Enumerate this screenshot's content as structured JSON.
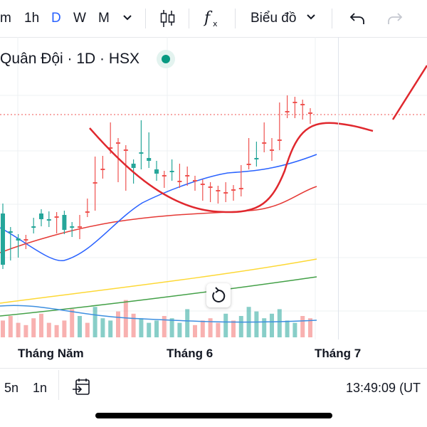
{
  "toolbar": {
    "interval_cut": "m",
    "interval_1h": "1h",
    "interval_d": "D",
    "interval_w": "W",
    "interval_m": "M",
    "chart_type_menu": "Biểu đồ",
    "icons": [
      "chevron-down-icon",
      "candles-icon",
      "indicators-fx-icon",
      "undo-icon",
      "redo-icon"
    ]
  },
  "symbol": {
    "title": "Quân Đội · 1D · HSX",
    "status_color": "#089981"
  },
  "xaxis": {
    "labels": [
      "Tháng Năm",
      "Tháng 6",
      "Tháng 7"
    ]
  },
  "bottom": {
    "range_5n": "5n",
    "range_1n": "1n",
    "time": "13:49:09 (UT"
  },
  "colors": {
    "up": "#26a69a",
    "down": "#ef5350",
    "ma_blue": "#2962ff",
    "ma_red": "#e53935",
    "ma_yellow": "#fdd835",
    "ma_green": "#43a047",
    "annotation": "#e0282e"
  },
  "chart_data": {
    "type": "candlestick",
    "series": [
      {
        "name": "price",
        "ohlc": [
          [
            372,
            300,
            320,
            292
          ],
          [
            326,
            325,
            360,
            350
          ],
          [
            338,
            335,
            356,
            355
          ],
          [
            336,
            336,
            344,
            340
          ],
          [
            320,
            318,
            322,
            312
          ],
          [
            308,
            300,
            312,
            304
          ],
          [
            309,
            308,
            313,
            303
          ],
          [
            304,
            304,
            320,
            322
          ],
          [
            323,
            302,
            306,
            319
          ],
          [
            319,
            318,
            327,
            324
          ],
          [
            318,
            320,
            308,
            330
          ],
          [
            297,
            297,
            299,
            285
          ],
          [
            256,
            256,
            226,
            290
          ],
          [
            237,
            237,
            225,
            245
          ],
          [
            207,
            207,
            178,
            210
          ],
          [
            200,
            200,
            240,
            250
          ],
          [
            210,
            210,
            260,
            262
          ],
          [
            236,
            230,
            248,
            252
          ],
          [
            216,
            214,
            175,
            232
          ],
          [
            226,
            222,
            192,
            230
          ],
          [
            244,
            238,
            232,
            248
          ],
          [
            246,
            246,
            254,
            258
          ],
          [
            242,
            240,
            230,
            248
          ],
          [
            254,
            254,
            236,
            258
          ],
          [
            246,
            246,
            240,
            255
          ],
          [
            253,
            253,
            256,
            262
          ],
          [
            258,
            258,
            270,
            276
          ],
          [
            262,
            262,
            275,
            278
          ],
          [
            267,
            267,
            272,
            280
          ],
          [
            270,
            270,
            262,
            278
          ],
          [
            266,
            266,
            272,
            276
          ],
          [
            264,
            264,
            238,
            270
          ],
          [
            230,
            230,
            200,
            232
          ],
          [
            224,
            222,
            205,
            228
          ],
          [
            200,
            200,
            178,
            208
          ],
          [
            210,
            210,
            200,
            220
          ],
          [
            196,
            196,
            150,
            205
          ],
          [
            156,
            156,
            140,
            160
          ],
          [
            143,
            143,
            142,
            160
          ],
          [
            146,
            148,
            160,
            162
          ],
          [
            158,
            158,
            165,
            168
          ]
        ]
      }
    ],
    "volume_up": [
      3,
      5,
      2,
      1,
      4,
      6,
      2,
      1,
      3,
      8,
      5,
      2,
      9,
      4,
      3,
      7,
      12,
      6,
      4,
      2,
      3,
      5,
      4,
      2,
      8,
      1,
      3,
      4,
      2,
      6,
      3,
      5,
      9,
      7,
      4,
      6,
      8,
      3,
      2,
      5,
      4
    ],
    "grid": true,
    "legend": ""
  }
}
